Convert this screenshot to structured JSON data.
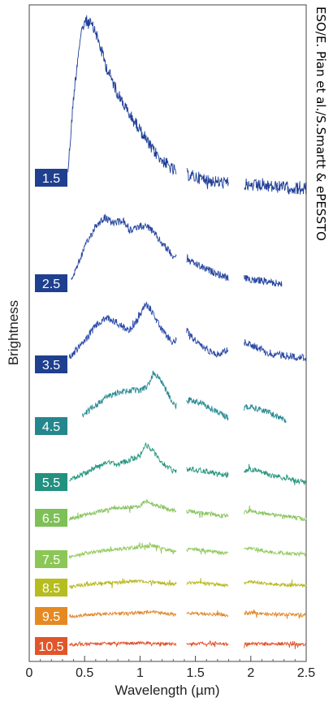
{
  "credit": "ESO/E. Pian et al./S.Smartt & ePESSTO",
  "chart_data": {
    "type": "line",
    "title": "",
    "xlabel": "Wavelength (µm)",
    "ylabel": "Brightness",
    "xlim": [
      0,
      2.5
    ],
    "xticks": [
      0,
      0.5,
      1,
      1.5,
      2,
      2.5
    ],
    "xtick_labels": [
      "0",
      "0.5",
      "1",
      "1.5",
      "2",
      "2.5"
    ],
    "y_ticks": "none",
    "grid": false,
    "legend": "none",
    "gaps_um": [
      [
        1.33,
        1.42
      ],
      [
        1.8,
        1.94
      ]
    ],
    "series": [
      {
        "name": "1.5",
        "label_color": "#1f3f8f",
        "line_color": "#1f3f98",
        "x_start": 0.35,
        "x_end": 2.5,
        "profile": [
          [
            0.35,
            0.12
          ],
          [
            0.4,
            0.55
          ],
          [
            0.45,
            0.85
          ],
          [
            0.5,
            1.0
          ],
          [
            0.55,
            0.98
          ],
          [
            0.6,
            0.93
          ],
          [
            0.7,
            0.72
          ],
          [
            0.8,
            0.57
          ],
          [
            0.9,
            0.45
          ],
          [
            1.0,
            0.36
          ],
          [
            1.1,
            0.25
          ],
          [
            1.2,
            0.18
          ],
          [
            1.3,
            0.12
          ],
          [
            1.5,
            0.08
          ],
          [
            1.7,
            0.05
          ],
          [
            2.0,
            0.03
          ],
          [
            2.3,
            0.02
          ],
          [
            2.5,
            0.01
          ]
        ]
      },
      {
        "name": "2.5",
        "label_color": "#1f3f8f",
        "line_color": "#2645a0",
        "x_start": 0.38,
        "x_end": 2.28,
        "profile": [
          [
            0.38,
            0.15
          ],
          [
            0.5,
            0.55
          ],
          [
            0.6,
            0.82
          ],
          [
            0.68,
            0.92
          ],
          [
            0.75,
            0.85
          ],
          [
            0.85,
            0.88
          ],
          [
            0.9,
            0.75
          ],
          [
            1.0,
            0.82
          ],
          [
            1.08,
            0.8
          ],
          [
            1.2,
            0.6
          ],
          [
            1.3,
            0.45
          ],
          [
            1.45,
            0.38
          ],
          [
            1.6,
            0.28
          ],
          [
            1.78,
            0.18
          ],
          [
            2.0,
            0.16
          ],
          [
            2.28,
            0.1
          ]
        ]
      },
      {
        "name": "3.5",
        "label_color": "#1f3f8f",
        "line_color": "#2a4aa8",
        "x_start": 0.36,
        "x_end": 2.5,
        "profile": [
          [
            0.36,
            0.2
          ],
          [
            0.5,
            0.42
          ],
          [
            0.6,
            0.62
          ],
          [
            0.7,
            0.72
          ],
          [
            0.8,
            0.65
          ],
          [
            0.9,
            0.55
          ],
          [
            0.98,
            0.7
          ],
          [
            1.05,
            0.9
          ],
          [
            1.1,
            0.82
          ],
          [
            1.2,
            0.55
          ],
          [
            1.3,
            0.4
          ],
          [
            1.42,
            0.55
          ],
          [
            1.55,
            0.35
          ],
          [
            1.7,
            0.25
          ],
          [
            1.95,
            0.4
          ],
          [
            2.2,
            0.25
          ],
          [
            2.5,
            0.2
          ]
        ]
      },
      {
        "name": "4.5",
        "label_color": "#24878e",
        "line_color": "#2a8a95",
        "x_start": 0.48,
        "x_end": 2.32,
        "profile": [
          [
            0.48,
            0.25
          ],
          [
            0.6,
            0.4
          ],
          [
            0.7,
            0.55
          ],
          [
            0.8,
            0.62
          ],
          [
            0.9,
            0.65
          ],
          [
            1.0,
            0.65
          ],
          [
            1.08,
            0.75
          ],
          [
            1.12,
            0.95
          ],
          [
            1.18,
            0.85
          ],
          [
            1.25,
            0.6
          ],
          [
            1.32,
            0.4
          ],
          [
            1.45,
            0.5
          ],
          [
            1.55,
            0.45
          ],
          [
            1.7,
            0.3
          ],
          [
            1.8,
            0.2
          ],
          [
            1.98,
            0.4
          ],
          [
            2.15,
            0.3
          ],
          [
            2.32,
            0.15
          ]
        ]
      },
      {
        "name": "5.5",
        "label_color": "#22917f",
        "line_color": "#26967f",
        "x_start": 0.36,
        "x_end": 2.5,
        "profile": [
          [
            0.36,
            0.15
          ],
          [
            0.5,
            0.3
          ],
          [
            0.6,
            0.45
          ],
          [
            0.7,
            0.55
          ],
          [
            0.8,
            0.5
          ],
          [
            0.9,
            0.6
          ],
          [
            1.0,
            0.7
          ],
          [
            1.05,
            0.95
          ],
          [
            1.1,
            0.85
          ],
          [
            1.2,
            0.55
          ],
          [
            1.3,
            0.35
          ],
          [
            1.45,
            0.4
          ],
          [
            1.6,
            0.35
          ],
          [
            1.78,
            0.25
          ],
          [
            2.0,
            0.4
          ],
          [
            2.2,
            0.25
          ],
          [
            2.5,
            0.1
          ]
        ]
      },
      {
        "name": "6.5",
        "label_color": "#7dc057",
        "line_color": "#86c35d",
        "x_start": 0.36,
        "x_end": 2.5,
        "profile": [
          [
            0.36,
            0.15
          ],
          [
            0.6,
            0.4
          ],
          [
            0.8,
            0.55
          ],
          [
            1.0,
            0.6
          ],
          [
            1.05,
            0.8
          ],
          [
            1.1,
            0.7
          ],
          [
            1.3,
            0.45
          ],
          [
            1.5,
            0.4
          ],
          [
            1.78,
            0.25
          ],
          [
            2.0,
            0.45
          ],
          [
            2.2,
            0.3
          ],
          [
            2.5,
            0.15
          ]
        ]
      },
      {
        "name": "7.5",
        "label_color": "#8cc657",
        "line_color": "#93c95c",
        "x_start": 0.36,
        "x_end": 2.5,
        "profile": [
          [
            0.36,
            0.2
          ],
          [
            0.6,
            0.45
          ],
          [
            0.8,
            0.55
          ],
          [
            1.0,
            0.65
          ],
          [
            1.1,
            0.7
          ],
          [
            1.3,
            0.45
          ],
          [
            1.5,
            0.55
          ],
          [
            1.78,
            0.35
          ],
          [
            2.0,
            0.6
          ],
          [
            2.2,
            0.4
          ],
          [
            2.5,
            0.3
          ]
        ]
      },
      {
        "name": "8.5",
        "label_color": "#b5bd1f",
        "line_color": "#b8b820",
        "x_start": 0.36,
        "x_end": 2.5,
        "profile": [
          [
            0.36,
            0.3
          ],
          [
            0.6,
            0.5
          ],
          [
            0.8,
            0.55
          ],
          [
            1.0,
            0.65
          ],
          [
            1.1,
            0.6
          ],
          [
            1.3,
            0.45
          ],
          [
            1.5,
            0.55
          ],
          [
            1.78,
            0.4
          ],
          [
            2.0,
            0.6
          ],
          [
            2.2,
            0.45
          ],
          [
            2.5,
            0.4
          ]
        ]
      },
      {
        "name": "9.5",
        "label_color": "#e58a22",
        "line_color": "#e0882a",
        "x_start": 0.36,
        "x_end": 2.5,
        "profile": [
          [
            0.36,
            0.3
          ],
          [
            0.6,
            0.45
          ],
          [
            0.8,
            0.5
          ],
          [
            1.0,
            0.55
          ],
          [
            1.1,
            0.6
          ],
          [
            1.3,
            0.45
          ],
          [
            1.5,
            0.5
          ],
          [
            1.78,
            0.4
          ],
          [
            2.0,
            0.55
          ],
          [
            2.2,
            0.45
          ],
          [
            2.5,
            0.4
          ]
        ]
      },
      {
        "name": "10.5",
        "label_color": "#e0562a",
        "line_color": "#e0522a",
        "x_start": 0.36,
        "x_end": 2.5,
        "profile": [
          [
            0.36,
            0.4
          ],
          [
            0.6,
            0.5
          ],
          [
            0.8,
            0.5
          ],
          [
            1.0,
            0.55
          ],
          [
            1.3,
            0.45
          ],
          [
            1.5,
            0.5
          ],
          [
            1.78,
            0.45
          ],
          [
            2.0,
            0.5
          ],
          [
            2.5,
            0.45
          ]
        ]
      }
    ]
  }
}
